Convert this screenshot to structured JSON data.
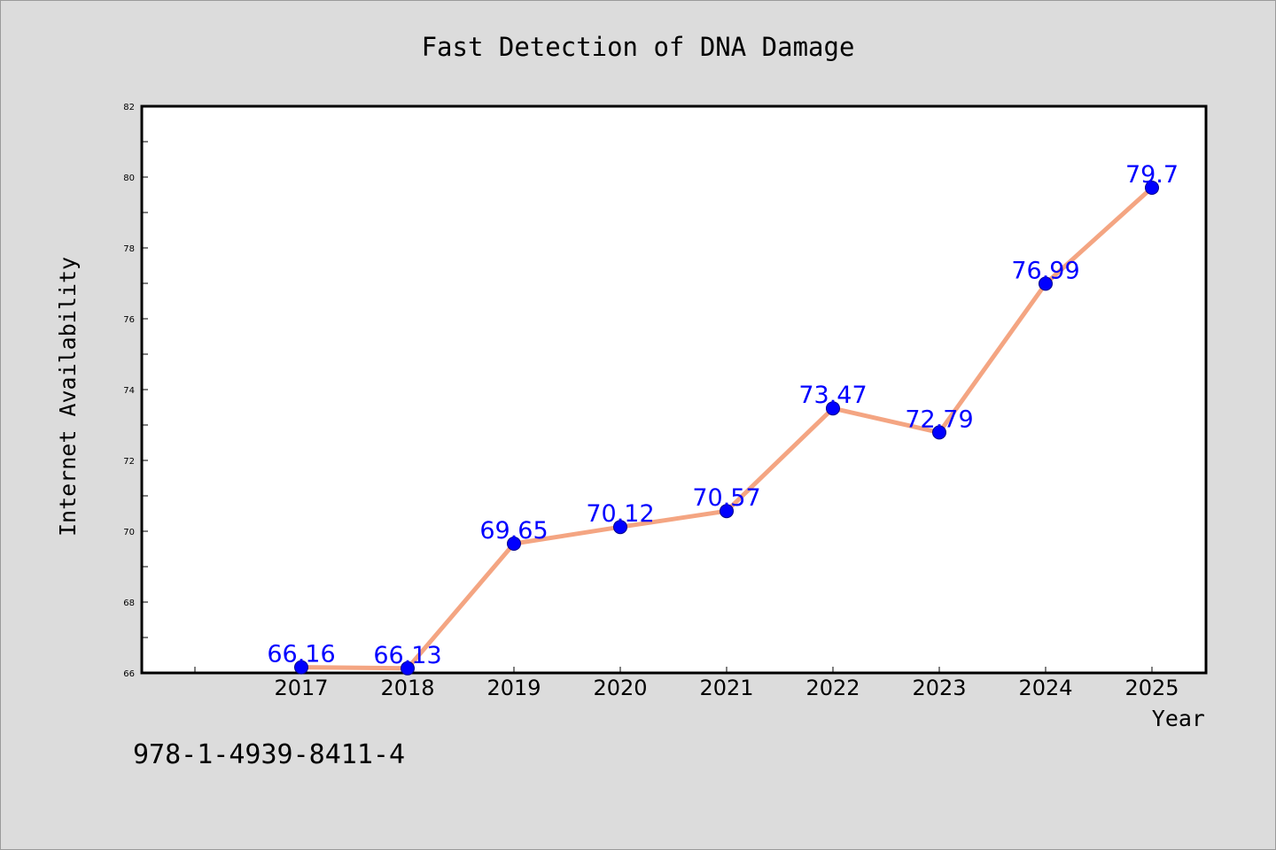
{
  "chart_data": {
    "type": "line",
    "title": "Fast Detection of DNA Damage",
    "xlabel": "Year",
    "ylabel": "Internet Availability",
    "x": [
      "2017",
      "2018",
      "2019",
      "2020",
      "2021",
      "2022",
      "2023",
      "2024",
      "2025"
    ],
    "series": [
      {
        "values": [
          66.16,
          66.13,
          69.65,
          70.12,
          70.57,
          73.47,
          72.79,
          76.99,
          79.7
        ],
        "labels": [
          "66.16",
          "66.13",
          "69.65",
          "70.12",
          "70.57",
          "73.47",
          "72.79",
          "76.99",
          "79.7"
        ],
        "line_color": "#f4a582",
        "marker_color": "#0000ff"
      }
    ],
    "ylim": [
      66,
      82
    ],
    "yticks": [
      "66",
      "68",
      "70",
      "72",
      "74",
      "76",
      "78",
      "80",
      "82"
    ],
    "grid": false,
    "legend": "none",
    "label_color": "#0000ff"
  },
  "footer": {
    "isbn": "978-1-4939-8411-4"
  }
}
